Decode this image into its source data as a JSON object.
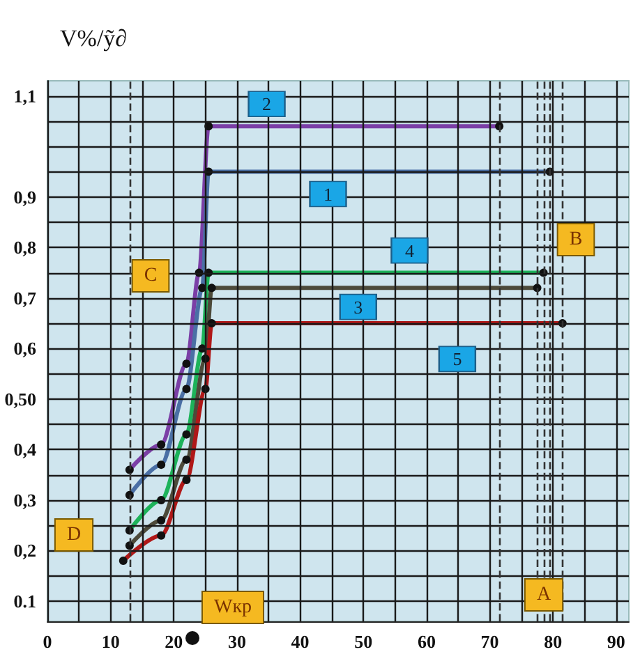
{
  "chart_data": {
    "type": "line",
    "ylabel": "V%/ỹ∂",
    "xlim": [
      0,
      92
    ],
    "ylim": [
      0.06,
      1.13
    ],
    "xticks": [
      0,
      {
        "value": 5,
        "label": null
      },
      10,
      {
        "value": 15,
        "label": null
      },
      20,
      {
        "value": 25,
        "label": null
      },
      30,
      {
        "value": 35,
        "label": null
      },
      40,
      {
        "value": 45,
        "label": null
      },
      50,
      {
        "value": 55,
        "label": null
      },
      60,
      {
        "value": 65,
        "label": null
      },
      70,
      {
        "value": 75,
        "label": null
      },
      80,
      {
        "value": 85,
        "label": null
      },
      90
    ],
    "yticks": [
      {
        "value": 0.1,
        "label": "0.1"
      },
      {
        "value": 0.15,
        "label": null
      },
      {
        "value": 0.2,
        "label": "0,2"
      },
      {
        "value": 0.25,
        "label": null
      },
      {
        "value": 0.3,
        "label": "0,3"
      },
      {
        "value": 0.35,
        "label": null
      },
      {
        "value": 0.4,
        "label": "0,4"
      },
      {
        "value": 0.45,
        "label": null
      },
      {
        "value": 0.5,
        "label": "0,50"
      },
      {
        "value": 0.55,
        "label": null
      },
      {
        "value": 0.6,
        "label": "0,6"
      },
      {
        "value": 0.65,
        "label": null
      },
      {
        "value": 0.7,
        "label": "0,7"
      },
      {
        "value": 0.75,
        "label": null
      },
      {
        "value": 0.8,
        "label": "0,8"
      },
      {
        "value": 0.85,
        "label": null
      },
      {
        "value": 0.9,
        "label": "0,9"
      },
      {
        "value": 0.95,
        "label": null
      },
      {
        "value": 1.0,
        "label": null
      },
      {
        "value": 1.05,
        "label": null
      },
      {
        "value": 1.1,
        "label": "1,1"
      }
    ],
    "grid": true,
    "marker": "circle",
    "line_style": "solid",
    "series": [
      {
        "name": "2",
        "color": "#7b3fa6",
        "x": [
          13,
          18,
          22,
          24,
          25.5,
          71.5
        ],
        "values": [
          0.36,
          0.41,
          0.57,
          0.75,
          1.04,
          1.04
        ]
      },
      {
        "name": "1",
        "color": "#4a6fa5",
        "x": [
          13,
          18,
          22,
          24.5,
          25.5,
          79.5
        ],
        "values": [
          0.31,
          0.37,
          0.52,
          0.72,
          0.95,
          0.95
        ]
      },
      {
        "name": "4",
        "color": "#1db35a",
        "x": [
          13,
          18,
          22,
          24.5,
          25.5,
          78.5
        ],
        "values": [
          0.24,
          0.3,
          0.43,
          0.6,
          0.75,
          0.75
        ]
      },
      {
        "name": "3",
        "color": "#4d4a3a",
        "x": [
          13,
          18,
          22,
          25,
          26,
          77.5
        ],
        "values": [
          0.21,
          0.26,
          0.38,
          0.58,
          0.72,
          0.72
        ]
      },
      {
        "name": "5",
        "color": "#b01818",
        "x": [
          12,
          18,
          22,
          25,
          26,
          81.5
        ],
        "values": [
          0.18,
          0.23,
          0.34,
          0.52,
          0.65,
          0.65
        ]
      }
    ],
    "ref_lines": [
      {
        "axis": "x",
        "value": 13,
        "line_style": "dashed"
      },
      {
        "axis": "x",
        "value": 71.5,
        "line_style": "dashed"
      },
      {
        "axis": "x",
        "value": 77.5,
        "line_style": "dashed"
      },
      {
        "axis": "x",
        "value": 78.5,
        "line_style": "dashed"
      },
      {
        "axis": "x",
        "value": 79.5,
        "line_style": "dashed"
      },
      {
        "axis": "x",
        "value": 81.5,
        "line_style": "dashed"
      }
    ],
    "annotations": [
      "A",
      "B",
      "C",
      "D",
      "Wкр"
    ]
  }
}
